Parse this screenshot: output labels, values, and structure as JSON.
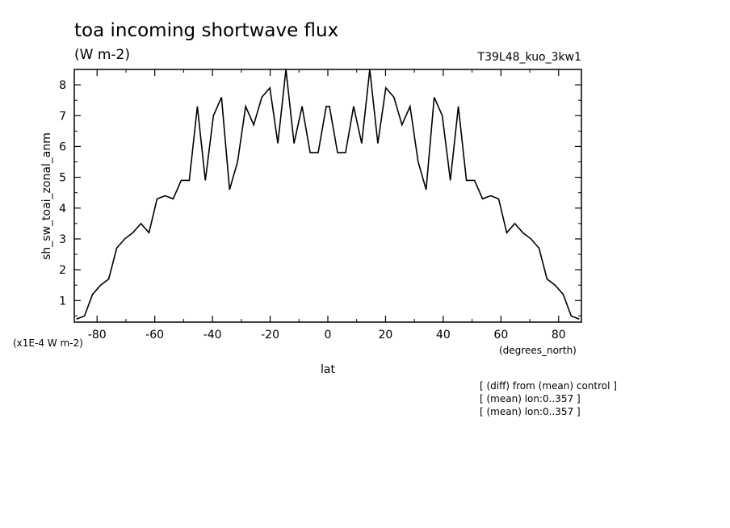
{
  "chart_data": {
    "type": "line",
    "title": "toa incoming shortwave flux",
    "units": "(W m-2)",
    "run_label": "T39L48_kuo_3kw1",
    "ylabel": "sh_sw_toai_zonal_anm",
    "xlabel": "lat",
    "xunits": "(degrees_north)",
    "yscale_note": "(x1E-4 W m-2)",
    "xlim": [
      -87.9,
      87.9
    ],
    "ylim": [
      0.3,
      8.5
    ],
    "xticks": [
      -80,
      -60,
      -40,
      -20,
      0,
      20,
      40,
      60,
      80
    ],
    "xtick_labels": [
      "-80",
      "-60",
      "-40",
      "-20",
      "0",
      "20",
      "40",
      "60",
      "80"
    ],
    "yticks": [
      1,
      2,
      3,
      4,
      5,
      6,
      7,
      8
    ],
    "ytick_labels": [
      "1",
      "2",
      "3",
      "4",
      "5",
      "6",
      "7",
      "8"
    ],
    "series": [
      {
        "x": [
          -87.16,
          -84.36,
          -81.57,
          -78.77,
          -75.98,
          -73.19,
          -70.39,
          -67.6,
          -64.81,
          -62.01,
          -59.22,
          -56.43,
          -53.63,
          -50.84,
          -48.05,
          -45.25,
          -42.46,
          -39.67,
          -36.87,
          -34.08,
          -31.29,
          -28.49,
          -25.7,
          -22.91,
          -20.11,
          -17.32,
          -14.53,
          -11.73,
          -8.94,
          -6.14,
          -3.35,
          -0.56,
          0.56,
          3.35,
          6.14,
          8.94,
          11.73,
          14.53,
          17.32,
          20.11,
          22.91,
          25.7,
          28.49,
          31.29,
          34.08,
          36.87,
          39.67,
          42.46,
          45.25,
          48.05,
          50.84,
          53.63,
          56.43,
          59.22,
          62.01,
          64.81,
          67.6,
          70.39,
          73.19,
          75.98,
          78.77,
          81.57,
          84.36,
          87.16
        ],
        "y": [
          0.4,
          0.5,
          1.2,
          1.5,
          1.7,
          2.7,
          3.0,
          3.2,
          3.5,
          3.2,
          4.3,
          4.4,
          4.3,
          4.9,
          4.9,
          7.3,
          4.9,
          7.0,
          7.6,
          4.6,
          5.5,
          7.3,
          6.7,
          7.6,
          7.9,
          6.1,
          8.5,
          6.1,
          7.3,
          5.8,
          5.8,
          7.3,
          7.3,
          5.8,
          5.8,
          7.3,
          6.1,
          8.5,
          6.1,
          7.9,
          7.6,
          6.7,
          7.3,
          5.5,
          4.6,
          7.6,
          7.0,
          4.9,
          7.3,
          4.9,
          4.9,
          4.3,
          4.4,
          4.3,
          3.2,
          3.5,
          3.2,
          3.0,
          2.7,
          1.7,
          1.5,
          1.2,
          0.5,
          0.4
        ]
      }
    ],
    "notes": [
      "[ (diff) from (mean) control ]",
      "[ (mean) lon:0..357 ]",
      "[ (mean) lon:0..357 ]"
    ],
    "grid": false,
    "line_color": "#000000"
  }
}
